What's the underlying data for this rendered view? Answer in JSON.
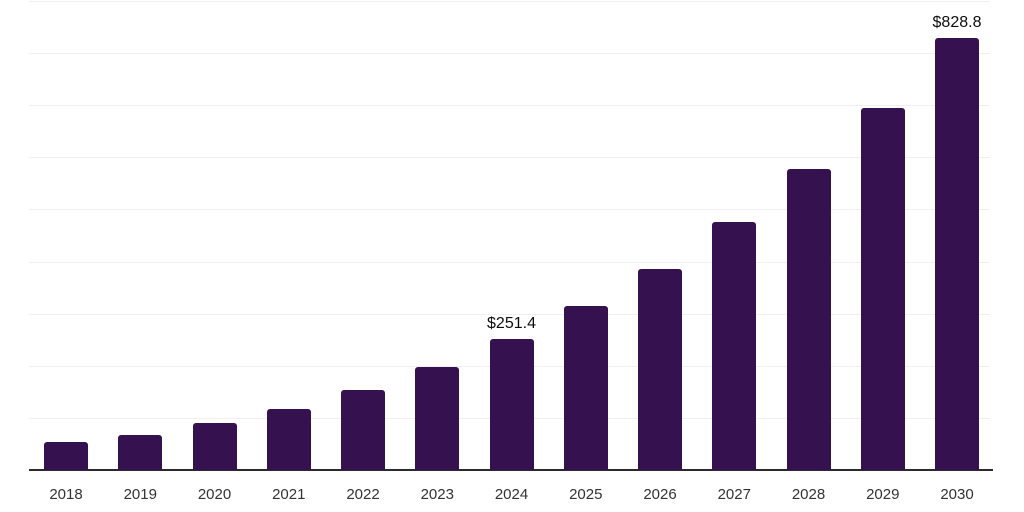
{
  "chart_data": {
    "type": "bar",
    "title": "",
    "xlabel": "",
    "ylabel": "",
    "categories": [
      "2018",
      "2019",
      "2020",
      "2021",
      "2022",
      "2023",
      "2024",
      "2025",
      "2026",
      "2027",
      "2028",
      "2029",
      "2030"
    ],
    "values": [
      54.1,
      67.6,
      89.5,
      117.6,
      153.5,
      198.2,
      251.4,
      314.5,
      386.5,
      476.5,
      577.0,
      695.3,
      828.8
    ],
    "annotations": [
      {
        "category": "2024",
        "text": "$251.4"
      },
      {
        "category": "2030",
        "text": "$828.8"
      }
    ],
    "ylim": [
      0,
      900
    ],
    "grid_interval": 100,
    "grid_on": true,
    "legend": "none",
    "y_axis_labels_visible": false
  },
  "colors": {
    "bar": "#351150",
    "grid": "#f0f0f2",
    "axis": "#2b2b2b",
    "tick_label": "#333333",
    "value_label": "#0d0d0d",
    "background": "#ffffff"
  }
}
